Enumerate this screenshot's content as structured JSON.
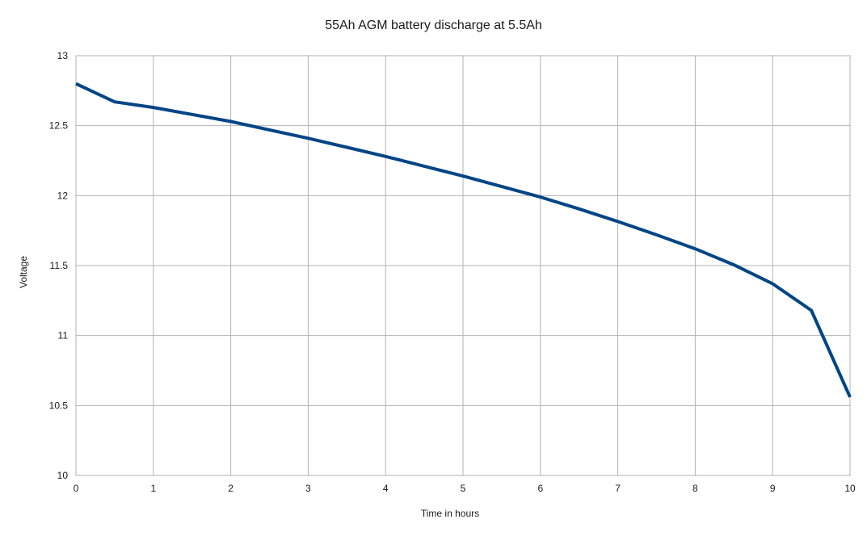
{
  "chart_data": {
    "type": "line",
    "title": "55Ah AGM battery discharge at 5.5Ah",
    "xlabel": "Time in hours",
    "ylabel": "Voltage",
    "xlim": [
      0,
      10
    ],
    "ylim": [
      10,
      13
    ],
    "x_ticks": [
      "0",
      "1",
      "2",
      "3",
      "4",
      "5",
      "6",
      "7",
      "8",
      "9",
      "10"
    ],
    "y_ticks": [
      "10",
      "10.5",
      "11",
      "11.5",
      "12",
      "12.5",
      "13"
    ],
    "grid": true,
    "legend": "none",
    "series": [
      {
        "color": "#004586",
        "x": [
          0,
          0.5,
          1,
          1.5,
          2,
          2.5,
          3,
          3.5,
          4,
          4.5,
          5,
          5.5,
          6,
          6.5,
          7,
          7.5,
          8,
          8.5,
          9,
          9.5,
          10
        ],
        "y": [
          12.8,
          12.67,
          12.63,
          12.58,
          12.53,
          12.47,
          12.41,
          12.345,
          12.28,
          12.21,
          12.14,
          12.065,
          11.99,
          11.905,
          11.815,
          11.72,
          11.62,
          11.505,
          11.37,
          11.18,
          10.56
        ]
      }
    ]
  }
}
